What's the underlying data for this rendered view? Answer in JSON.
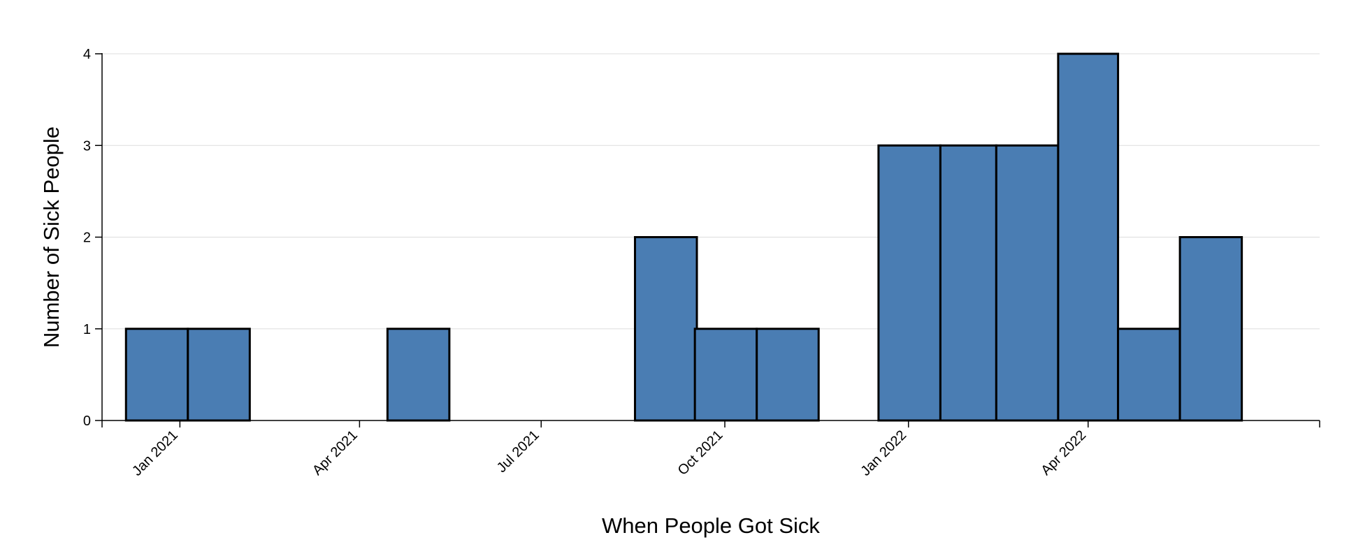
{
  "chart_data": {
    "type": "bar",
    "xlabel": "When People Got Sick",
    "ylabel": "Number of Sick People",
    "ylim": [
      0,
      4
    ],
    "yticks": [
      "0",
      "1",
      "2",
      "3",
      "4"
    ],
    "xlim": [
      "2020-11-23",
      "2022-07-26"
    ],
    "xticks": [
      {
        "date": "2021-01-01",
        "label": "Jan 2021"
      },
      {
        "date": "2021-04-01",
        "label": "Apr 2021"
      },
      {
        "date": "2021-07-01",
        "label": "Jul 2021"
      },
      {
        "date": "2021-10-01",
        "label": "Oct 2021"
      },
      {
        "date": "2022-01-01",
        "label": "Jan 2022"
      },
      {
        "date": "2022-04-01",
        "label": "Apr 2022"
      }
    ],
    "bins": [
      {
        "start": "2020-12-05",
        "end": "2021-01-05",
        "count": 1
      },
      {
        "start": "2021-01-05",
        "end": "2021-02-05",
        "count": 1
      },
      {
        "start": "2021-04-15",
        "end": "2021-05-16",
        "count": 1
      },
      {
        "start": "2021-08-17",
        "end": "2021-09-17",
        "count": 2
      },
      {
        "start": "2021-09-16",
        "end": "2021-10-17",
        "count": 1
      },
      {
        "start": "2021-10-17",
        "end": "2021-11-17",
        "count": 1
      },
      {
        "start": "2021-12-17",
        "end": "2022-01-17",
        "count": 3
      },
      {
        "start": "2022-01-17",
        "end": "2022-02-14",
        "count": 3
      },
      {
        "start": "2022-02-14",
        "end": "2022-03-17",
        "count": 3
      },
      {
        "start": "2022-03-17",
        "end": "2022-04-16",
        "count": 4
      },
      {
        "start": "2022-04-16",
        "end": "2022-05-17",
        "count": 1
      },
      {
        "start": "2022-05-17",
        "end": "2022-06-17",
        "count": 2
      }
    ],
    "grid": true,
    "colors": {
      "bar": "#4a7db3",
      "stroke": "#000000",
      "grid": "#dddddd"
    }
  }
}
